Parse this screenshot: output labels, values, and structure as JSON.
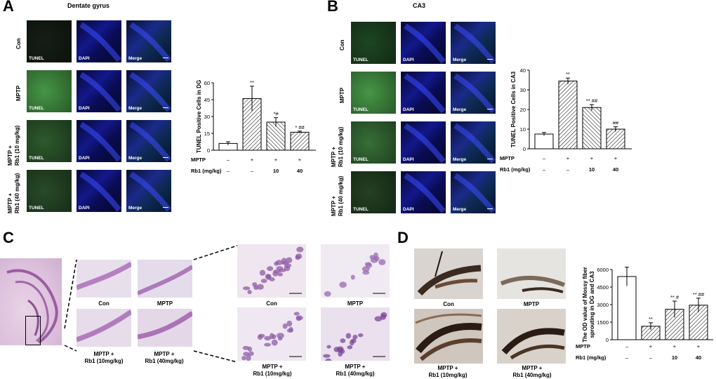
{
  "panels": {
    "A": {
      "letter": "A",
      "title": "Dentate gyrus",
      "rows": [
        "Con",
        "MPTP",
        "MPTP +\nRb1 (10 mg/kg)",
        "MPTP +\nRb1 (40 mg/kg)"
      ],
      "cols": [
        "TUNEL",
        "DAPI",
        "Merge"
      ]
    },
    "B": {
      "letter": "B",
      "title": "CA3",
      "rows": [
        "Con",
        "MPTP",
        "MPTP +\nRb1 (10 mg/kg)",
        "MPTP +\nRb1 (40 mg/kg)"
      ],
      "cols": [
        "TUNEL",
        "DAPI",
        "Merge"
      ]
    },
    "C": {
      "letter": "C",
      "captions": [
        "Con",
        "MPTP",
        "MPTP +\nRb1 (10mg/kg)",
        "MPTP +\nRb1 (40mg/kg)"
      ]
    },
    "D": {
      "letter": "D",
      "captions": [
        "Con",
        "MPTP",
        "MPTP +\nRb1 (10mg/kg)",
        "MPTP +\nRb1 (40mg/kg)"
      ]
    }
  },
  "chart_data": [
    {
      "type": "bar",
      "panel": "A",
      "ylabel": "TUNEL Positive Cells in DG",
      "ylim": [
        0,
        60
      ],
      "yticks": [
        0,
        15,
        30,
        45,
        60
      ],
      "categories": [
        "Con",
        "MPTP",
        "MPTP+Rb1 10",
        "MPTP+Rb1 40"
      ],
      "values": [
        6,
        46,
        25,
        16
      ],
      "errors": [
        1.5,
        11,
        4,
        1
      ],
      "significance": [
        "",
        "**",
        "*#",
        "* ##"
      ],
      "factor_rows": [
        {
          "label": "MPTP",
          "values": [
            "–",
            "+",
            "+",
            "+"
          ]
        },
        {
          "label": "Rb1 (mg/kg)",
          "values": [
            "–",
            "–",
            "10",
            "40"
          ]
        }
      ],
      "patterns": [
        "none",
        "fwd",
        "back",
        "fwd"
      ]
    },
    {
      "type": "bar",
      "panel": "B",
      "ylabel": "TUNEL Positive Cells in CA3",
      "ylim": [
        0,
        40
      ],
      "yticks": [
        0,
        10,
        20,
        30,
        40
      ],
      "categories": [
        "Con",
        "MPTP",
        "MPTP+Rb1 10",
        "MPTP+Rb1 40"
      ],
      "values": [
        7.5,
        34.5,
        21,
        10
      ],
      "errors": [
        0.8,
        1.5,
        1.5,
        1.2
      ],
      "significance": [
        "",
        "**",
        "** ##",
        "##"
      ],
      "factor_rows": [
        {
          "label": "MPTP",
          "values": [
            "–",
            "+",
            "+",
            "+"
          ]
        },
        {
          "label": "Rb1 (mg/kg)",
          "values": [
            "–",
            "–",
            "10",
            "40"
          ]
        }
      ],
      "patterns": [
        "none",
        "fwd",
        "back",
        "fwd"
      ]
    },
    {
      "type": "bar",
      "panel": "D",
      "ylabel": "The OD value of Mossy fiber\nsprouting in DG and CA3",
      "ylim": [
        0,
        6000
      ],
      "yticks": [
        0,
        1500,
        3000,
        4500,
        6000
      ],
      "categories": [
        "Con",
        "MPTP",
        "MPTP+Rb1 10",
        "MPTP+Rb1 40"
      ],
      "values": [
        5400,
        1150,
        2600,
        2950
      ],
      "errors": [
        800,
        300,
        700,
        600
      ],
      "significance": [
        "",
        "**",
        "** #",
        "** ##"
      ],
      "factor_rows": [
        {
          "label": "MPTP",
          "values": [
            "–",
            "+",
            "+",
            "+"
          ]
        },
        {
          "label": "Rb1 (mg/kg)",
          "values": [
            "–",
            "–",
            "10",
            "40"
          ]
        }
      ],
      "patterns": [
        "none",
        "fwd",
        "fwd",
        "fwd"
      ]
    }
  ]
}
